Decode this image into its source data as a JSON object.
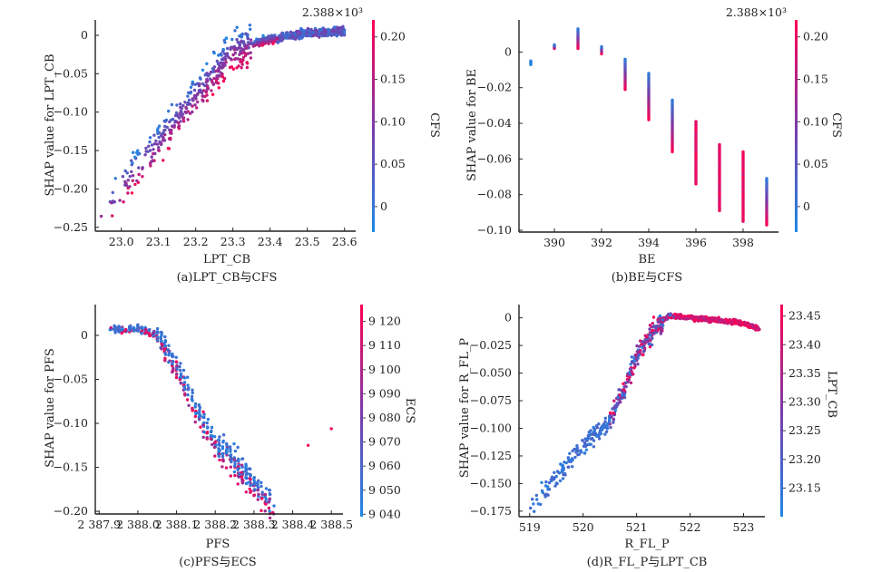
{
  "colormap": {
    "low": "#1e88e5",
    "mid": "#7c3aa8",
    "high": "#ff0052"
  },
  "chart_data": [
    {
      "id": "a",
      "type": "scatter",
      "caption": "(a)LPT_CB与CFS",
      "xlabel": "LPT_CB",
      "ylabel": "SHAP value for LPT_CB",
      "xlim": [
        22.93,
        23.63
      ],
      "ylim": [
        -0.255,
        0.02
      ],
      "xticks": [
        23.0,
        23.1,
        23.2,
        23.3,
        23.4,
        23.5,
        23.6
      ],
      "xtick_labels": [
        "23.0",
        "23.1",
        "23.2",
        "23.3",
        "23.4",
        "23.5",
        "23.6"
      ],
      "yticks": [
        0,
        -0.05,
        -0.1,
        -0.15,
        -0.2,
        -0.25
      ],
      "ytick_labels": [
        "0",
        "−0.05",
        "−0.10",
        "−0.15",
        "−0.20",
        "−0.25"
      ],
      "colorbar": {
        "label": "CFS",
        "offset_text": "2.388×10³",
        "range": [
          -0.03,
          0.22
        ],
        "ticks": [
          0.2,
          0.15,
          0.1,
          0.05,
          0
        ],
        "tick_labels": [
          "0.20",
          "0.15",
          "0.10",
          "0.05",
          "0"
        ]
      },
      "trend": {
        "description": "Monotonic increasing curve, steep below 23.3 then flattening near 0; higher CFS (pink) lies below lower CFS (blue) in steep region",
        "key_points": [
          [
            22.94,
            -0.24
          ],
          [
            23.0,
            -0.2
          ],
          [
            23.1,
            -0.14
          ],
          [
            23.2,
            -0.08
          ],
          [
            23.3,
            -0.02
          ],
          [
            23.4,
            -0.005
          ],
          [
            23.5,
            0.003
          ],
          [
            23.55,
            0.005
          ],
          [
            23.6,
            0.005
          ]
        ]
      }
    },
    {
      "id": "b",
      "type": "scatter",
      "caption": "(b)BE与CFS",
      "xlabel": "BE",
      "ylabel": "SHAP value for BE",
      "xlim": [
        388.5,
        399.5
      ],
      "ylim": [
        -0.101,
        0.018
      ],
      "xticks": [
        390,
        392,
        394,
        396,
        398
      ],
      "xtick_labels": [
        "390",
        "392",
        "394",
        "396",
        "398"
      ],
      "yticks": [
        0,
        -0.02,
        -0.04,
        -0.06,
        -0.08,
        -0.1
      ],
      "ytick_labels": [
        "0",
        "−0.02",
        "−0.04",
        "−0.06",
        "−0.08",
        "−0.10"
      ],
      "colorbar": {
        "label": "CFS",
        "offset_text": "2.388×10³",
        "range": [
          -0.03,
          0.22
        ],
        "ticks": [
          0.2,
          0.15,
          0.1,
          0.05,
          0
        ],
        "tick_labels": [
          "0.20",
          "0.15",
          "0.10",
          "0.05",
          "0"
        ]
      },
      "columns": [
        {
          "x": 389,
          "y_range": [
            -0.007,
            -0.005
          ],
          "color_level": 0.0
        },
        {
          "x": 390,
          "y_range": [
            0.002,
            0.004
          ],
          "color_level": 0.6
        },
        {
          "x": 391,
          "y_range": [
            0.002,
            0.013
          ],
          "color_level": 0.5
        },
        {
          "x": 392,
          "y_range": [
            -0.001,
            0.003
          ],
          "color_level": 0.7
        },
        {
          "x": 393,
          "y_range": [
            -0.021,
            -0.004
          ],
          "color_level": 0.5
        },
        {
          "x": 394,
          "y_range": [
            -0.038,
            -0.012
          ],
          "color_level": 0.5
        },
        {
          "x": 395,
          "y_range": [
            -0.056,
            -0.027
          ],
          "color_level": 0.55
        },
        {
          "x": 396,
          "y_range": [
            -0.074,
            -0.039
          ],
          "color_level": 0.8
        },
        {
          "x": 397,
          "y_range": [
            -0.089,
            -0.052
          ],
          "color_level": 0.85
        },
        {
          "x": 398,
          "y_range": [
            -0.095,
            -0.056
          ],
          "color_level": 0.9
        },
        {
          "x": 399,
          "y_range": [
            -0.097,
            -0.071
          ],
          "color_level": 0.7
        }
      ]
    },
    {
      "id": "c",
      "type": "scatter",
      "caption": "(c)PFS与ECS",
      "xlabel": "PFS",
      "ylabel": "SHAP value for PFS",
      "xlim": [
        2387.89,
        2388.53
      ],
      "ylim": [
        -0.203,
        0.035
      ],
      "xticks": [
        2387.9,
        2388.0,
        2388.1,
        2388.2,
        2388.3,
        2388.4,
        2388.5
      ],
      "xtick_labels": [
        "2 387.9",
        "2 388.0",
        "2 388.1",
        "2 388.2",
        "2 388.3",
        "2 388.4",
        "2 388.5"
      ],
      "yticks": [
        0,
        -0.05,
        -0.1,
        -0.15,
        -0.2
      ],
      "ytick_labels": [
        "0",
        "−0.05",
        "−0.10",
        "−0.15",
        "−0.20"
      ],
      "colorbar": {
        "label": "ECS",
        "offset_text": "",
        "range": [
          9039,
          9127
        ],
        "ticks": [
          9120,
          9110,
          9100,
          9090,
          9080,
          9070,
          9060,
          9050,
          9040
        ],
        "tick_labels": [
          "9 120",
          "9 110",
          "9 100",
          "9 090",
          "9 080",
          "9 070",
          "9 060",
          "9 050",
          "9 040"
        ]
      },
      "trend": {
        "description": "Flat near 0.005 until ~2388.03, then steep decline to about -0.19 at 2388.35; two outliers at 2388.44 (-0.125) and 2388.5 (-0.105)",
        "key_points": [
          [
            2387.93,
            0.006
          ],
          [
            2388.0,
            0.008
          ],
          [
            2388.05,
            0.0
          ],
          [
            2388.1,
            -0.03
          ],
          [
            2388.15,
            -0.08
          ],
          [
            2388.2,
            -0.12
          ],
          [
            2388.25,
            -0.14
          ],
          [
            2388.3,
            -0.165
          ],
          [
            2388.35,
            -0.19
          ]
        ],
        "outliers": [
          [
            2388.44,
            -0.125
          ],
          [
            2388.5,
            -0.106
          ]
        ]
      }
    },
    {
      "id": "d",
      "type": "scatter",
      "caption": "(d)R_FL_P与LPT_CB",
      "xlabel": "R_FL_P",
      "ylabel": "SHAP value for R_FL_P",
      "xlim": [
        518.8,
        523.4
      ],
      "ylim": [
        -0.18,
        0.012
      ],
      "xticks": [
        519,
        520,
        521,
        522,
        523
      ],
      "xtick_labels": [
        "519",
        "520",
        "521",
        "522",
        "523"
      ],
      "yticks": [
        0,
        -0.025,
        -0.05,
        -0.075,
        -0.1,
        -0.125,
        -0.15,
        -0.175
      ],
      "ytick_labels": [
        "0",
        "−0.025",
        "−0.050",
        "−0.075",
        "−0.100",
        "−0.125",
        "−0.150",
        "−0.175"
      ],
      "colorbar": {
        "label": "LPT_CB",
        "offset_text": "",
        "range": [
          23.1,
          23.47
        ],
        "ticks": [
          23.45,
          23.4,
          23.35,
          23.3,
          23.25,
          23.2,
          23.15
        ],
        "tick_labels": [
          "23.45",
          "23.40",
          "23.35",
          "23.30",
          "23.25",
          "23.20",
          "23.15"
        ]
      },
      "trend": {
        "description": "Increasing from -0.17 at 519 to peak ~0.002 near 521.6, then slowly decreasing to about -0.01 at 523.3",
        "key_points": [
          [
            519.0,
            -0.17
          ],
          [
            519.5,
            -0.145
          ],
          [
            520.0,
            -0.115
          ],
          [
            520.5,
            -0.095
          ],
          [
            520.8,
            -0.06
          ],
          [
            521.0,
            -0.035
          ],
          [
            521.3,
            -0.012
          ],
          [
            521.6,
            0.002
          ],
          [
            522.0,
            0.0
          ],
          [
            522.5,
            -0.002
          ],
          [
            523.0,
            -0.005
          ],
          [
            523.3,
            -0.01
          ]
        ]
      }
    }
  ]
}
